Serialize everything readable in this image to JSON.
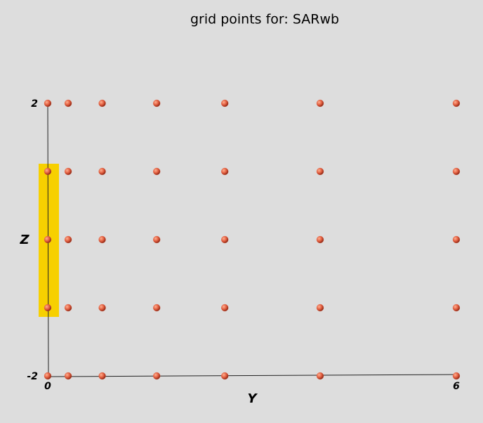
{
  "chart_data": {
    "type": "scatter",
    "title": "grid points for: SARwb",
    "x_label": "Y",
    "y_label": "Z",
    "x": [
      0,
      0.3,
      0.8,
      1.6,
      2.6,
      4,
      6,
      0,
      0.3,
      0.8,
      1.6,
      2.6,
      4,
      6,
      0,
      0.3,
      0.8,
      1.6,
      2.6,
      4,
      6,
      0,
      0.3,
      0.8,
      1.6,
      2.6,
      4,
      6,
      0,
      0.3,
      0.8,
      1.6,
      2.6,
      4,
      6
    ],
    "values": [
      2,
      2,
      2,
      2,
      2,
      2,
      2,
      1,
      1,
      1,
      1,
      1,
      1,
      1,
      0,
      0,
      0,
      0,
      0,
      0,
      0,
      -1,
      -1,
      -1,
      -1,
      -1,
      -1,
      -1,
      -2,
      -2,
      -2,
      -2,
      -2,
      -2,
      -2
    ],
    "color": "#e05a3c",
    "xlim": [
      0,
      6
    ],
    "ylim": [
      -2,
      2
    ],
    "xticks": [
      0,
      6
    ],
    "yticks": [
      -2,
      2
    ],
    "grid": false
  }
}
